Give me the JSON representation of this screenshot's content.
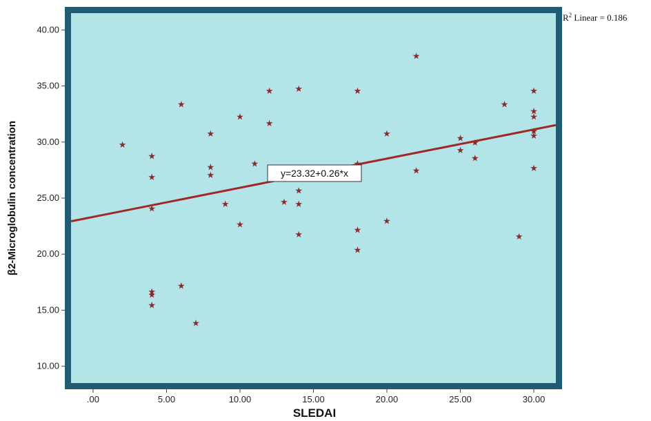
{
  "chart_data": {
    "type": "scatter",
    "xlabel": "SLEDAI",
    "ylabel": "β2-Microglobulin concentration",
    "xlim": [
      -1.5,
      31.5
    ],
    "ylim": [
      8.5,
      41.5
    ],
    "x_ticks": [
      ".00",
      "5.00",
      "10.00",
      "15.00",
      "20.00",
      "25.00",
      "30.00"
    ],
    "y_ticks": [
      "10.00",
      "15.00",
      "20.00",
      "25.00",
      "30.00",
      "35.00",
      "40.00"
    ],
    "fit_line": {
      "intercept": 23.32,
      "slope": 0.26,
      "equation_label": "y=23.32+0.26*x",
      "r2_label": "R",
      "r2_sup": "2",
      "r2_rest": " Linear = 0.186"
    },
    "points": [
      [
        2,
        29.8
      ],
      [
        4,
        28.8
      ],
      [
        4,
        26.9
      ],
      [
        4,
        24.1
      ],
      [
        4,
        16.7
      ],
      [
        4,
        16.4
      ],
      [
        4,
        15.5
      ],
      [
        6,
        33.4
      ],
      [
        6,
        17.2
      ],
      [
        7,
        13.9
      ],
      [
        8,
        30.8
      ],
      [
        8,
        27.8
      ],
      [
        8,
        27.1
      ],
      [
        9,
        24.5
      ],
      [
        10,
        32.3
      ],
      [
        10,
        22.7
      ],
      [
        11,
        28.1
      ],
      [
        12,
        34.6
      ],
      [
        12,
        31.7
      ],
      [
        13,
        24.7
      ],
      [
        14,
        34.8
      ],
      [
        14,
        25.7
      ],
      [
        14,
        24.5
      ],
      [
        14,
        21.8
      ],
      [
        18,
        34.6
      ],
      [
        18,
        28.1
      ],
      [
        18,
        22.2
      ],
      [
        18,
        20.4
      ],
      [
        20,
        30.8
      ],
      [
        20,
        23.0
      ],
      [
        22,
        37.7
      ],
      [
        22,
        27.5
      ],
      [
        25,
        30.4
      ],
      [
        25,
        29.3
      ],
      [
        26,
        30.0
      ],
      [
        26,
        28.6
      ],
      [
        28,
        33.4
      ],
      [
        29,
        21.6
      ],
      [
        30,
        34.6
      ],
      [
        30,
        32.8
      ],
      [
        30,
        32.3
      ],
      [
        30,
        31.0
      ],
      [
        30,
        30.6
      ],
      [
        30,
        27.7
      ]
    ],
    "marker_symbol": "★",
    "grid": false,
    "colors": {
      "plot_bg": "#b3e5e8",
      "frame": "#1f5b73",
      "point": "#8b2a2a",
      "line": "#a02828"
    }
  }
}
